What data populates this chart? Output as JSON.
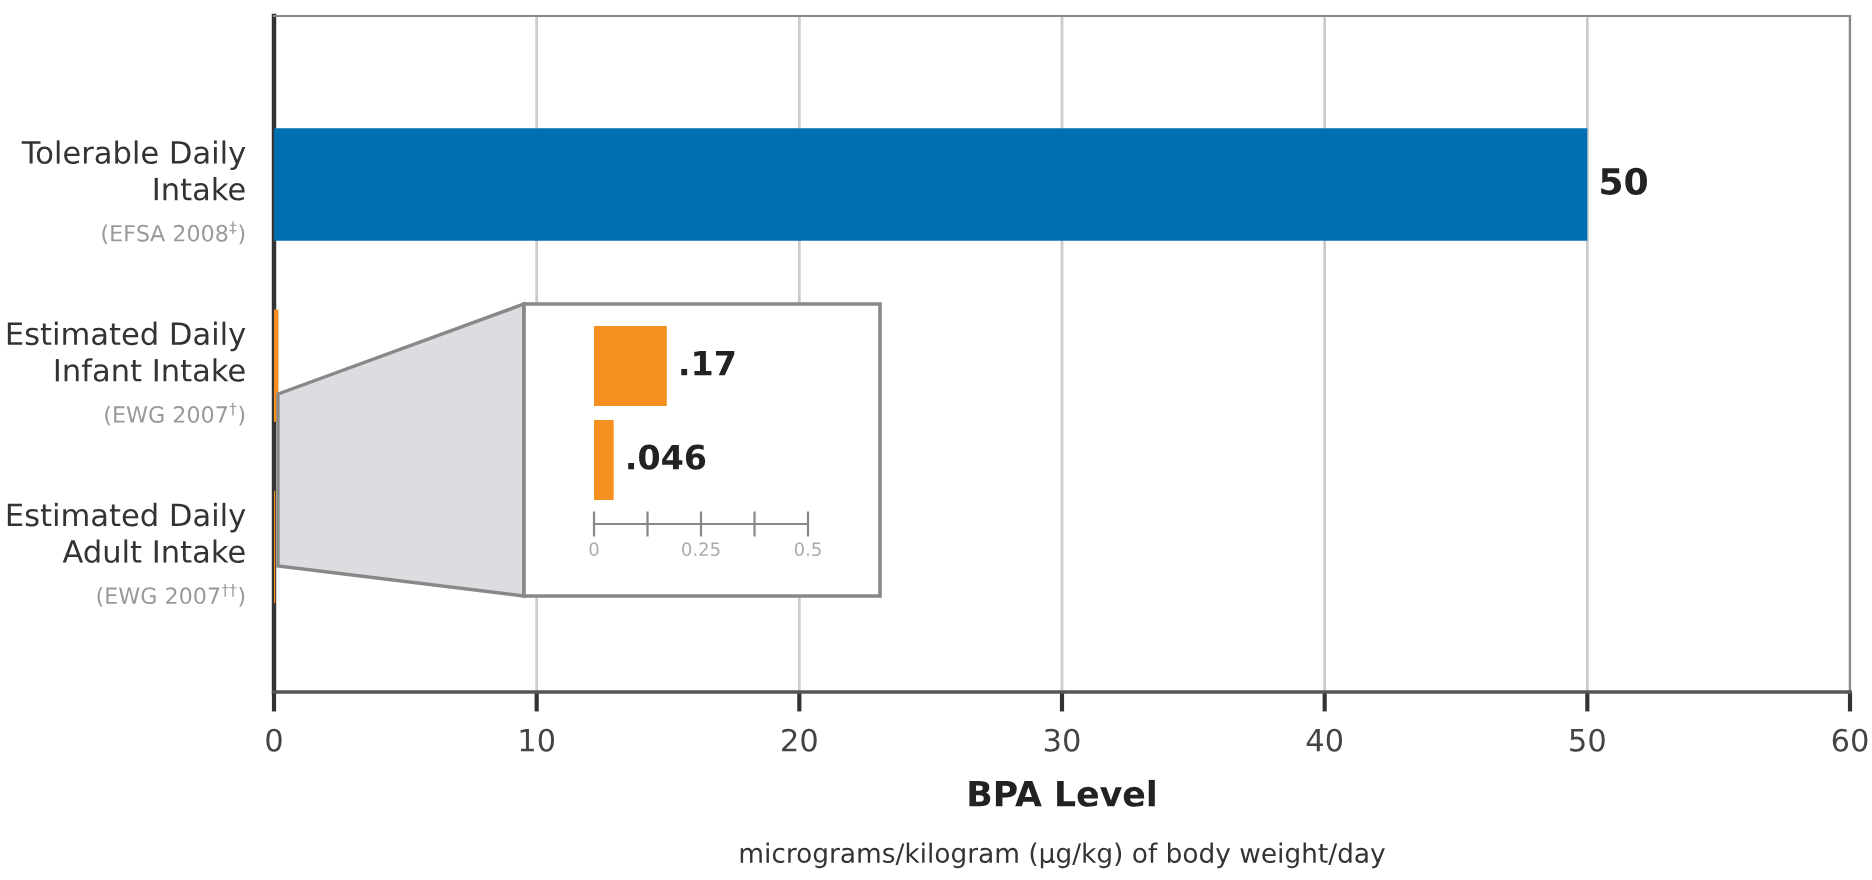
{
  "chart_data": [
    {
      "type": "bar",
      "orientation": "horizontal",
      "categories": [
        "Tolerable Daily\nIntake\n(EFSA 2008$^{‡}$)",
        "Estimated Daily\nInfant Intake\n(EWG 2007$^{†}$)",
        "Estimated Daily\nAdult Intake\n(EWG 2007$^{††}$)"
      ],
      "values": [
        50,
        0.17,
        0.046
      ],
      "colors": [
        "#0070b0",
        "#f39020",
        "#f39020"
      ],
      "value_labels": [
        "50",
        null,
        null
      ],
      "xlim": [
        0,
        60
      ],
      "xticks": [
        0,
        10,
        20,
        30,
        40,
        50,
        60
      ],
      "xlabel": "BPA Level",
      "annotations": [
        "micrograms/kilogram (µg/kg) of body weight/day"
      ],
      "grid": "x"
    },
    {
      "type": "bar",
      "orientation": "horizontal",
      "categories": [
        null,
        null
      ],
      "values": [
        0.17,
        0.046
      ],
      "color": "#f39020",
      "value_labels": [
        ".17",
        ".046"
      ],
      "xlim": [
        0,
        0.5
      ],
      "xticks": [
        0,
        {
          "value": 0.125,
          "label": null
        },
        0.25,
        {
          "value": 0.375,
          "label": null
        },
        0.5
      ]
    }
  ]
}
